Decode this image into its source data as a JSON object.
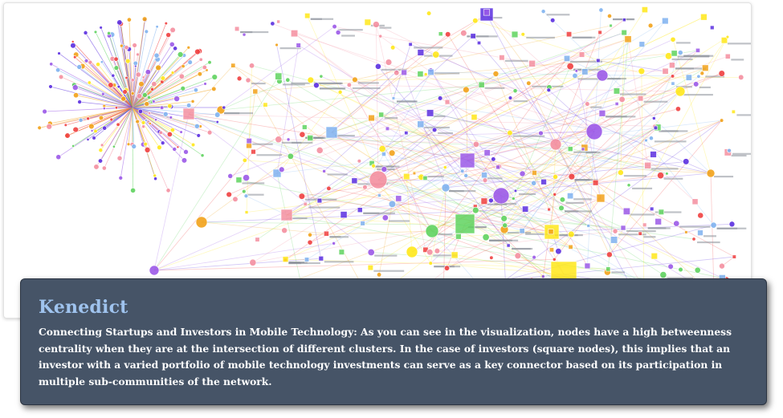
{
  "caption": {
    "title": "Kenedict",
    "body": "Connecting Startups and Investors in Mobile Technology: As you can see in the visualization, nodes have a high betweenness centrality when they are at the intersection of different clusters. In the case of investors (square nodes), this implies that an investor with a varied portfolio of mobile technology investments can serve as a key connector based on its participation in multiple sub-communities of the network."
  },
  "palette": {
    "purple": "#9b59e8",
    "violet": "#5b2fe0",
    "green": "#5fd35f",
    "yellow": "#ffe81a",
    "orange": "#f2a21a",
    "pink": "#f48fa0",
    "blue": "#7fb2f0",
    "red": "#f04040",
    "caption_bg": "#465467",
    "caption_title": "#9fc3ee"
  }
}
